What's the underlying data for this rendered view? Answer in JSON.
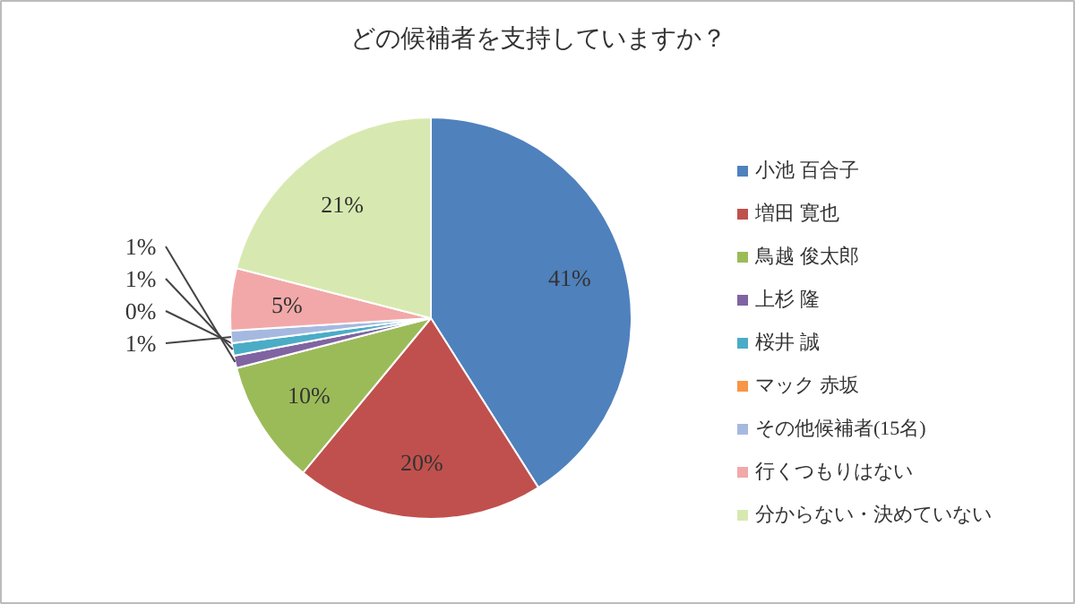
{
  "chart_data": {
    "type": "pie",
    "title": "どの候補者を支持していますか？",
    "categories": [
      "小池 百合子",
      "増田 寛也",
      "鳥越 俊太郎",
      "上杉 隆",
      "桜井 誠",
      "マック 赤坂",
      "その他候補者(15名)",
      "行くつもりはない",
      "分からない・決めていない"
    ],
    "values": [
      41,
      20,
      10,
      1,
      1,
      0,
      1,
      5,
      21
    ],
    "colors": [
      "#4f81bd",
      "#c0504d",
      "#9bbb59",
      "#8064a2",
      "#4bacc6",
      "#f79646",
      "#a5b9e0",
      "#f2a8a8",
      "#d7e9b0"
    ],
    "value_labels": [
      "41%",
      "20%",
      "10%",
      "1%",
      "1%",
      "0%",
      "1%",
      "5%",
      "21%"
    ],
    "legend": "right"
  }
}
